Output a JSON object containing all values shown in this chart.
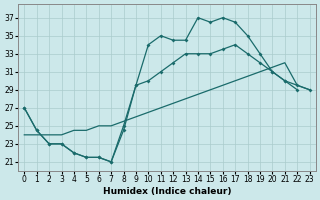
{
  "xlabel": "Humidex (Indice chaleur)",
  "xlim": [
    -0.5,
    23.5
  ],
  "ylim": [
    20.0,
    38.5
  ],
  "yticks": [
    21,
    23,
    25,
    27,
    29,
    31,
    33,
    35,
    37
  ],
  "xticks": [
    0,
    1,
    2,
    3,
    4,
    5,
    6,
    7,
    8,
    9,
    10,
    11,
    12,
    13,
    14,
    15,
    16,
    17,
    18,
    19,
    20,
    21,
    22,
    23
  ],
  "bg_color": "#cce8ea",
  "grid_color": "#aacccc",
  "line_color": "#1a6b6b",
  "line1_x": [
    0,
    1,
    2,
    3,
    4,
    5,
    6,
    7,
    8,
    9,
    10,
    11,
    12,
    13,
    14,
    15,
    16,
    17,
    18,
    19,
    20,
    21,
    22
  ],
  "line1_y": [
    27,
    24.5,
    23,
    23,
    22,
    21.5,
    21.5,
    21,
    24.5,
    29.5,
    34,
    35,
    34.5,
    34.5,
    37,
    36.5,
    37,
    36.5,
    35,
    33,
    31,
    30,
    29
  ],
  "line2_x": [
    0,
    1,
    2,
    3,
    4,
    5,
    6,
    7,
    8,
    9,
    10,
    11,
    12,
    13,
    14,
    15,
    16,
    17,
    18,
    19,
    20,
    21,
    22,
    23
  ],
  "line2_y": [
    24,
    24,
    24,
    24,
    24.5,
    24.5,
    25,
    25,
    25.5,
    26,
    26.5,
    27,
    27.5,
    28,
    28.5,
    29,
    29.5,
    30,
    30.5,
    31,
    31.5,
    32,
    29.5,
    29
  ],
  "line3_x": [
    0,
    1,
    2,
    3,
    4,
    5,
    6,
    7,
    8,
    9,
    10,
    11,
    12,
    13,
    14,
    15,
    16,
    17,
    18,
    19,
    20,
    21,
    22,
    23
  ],
  "line3_y": [
    27,
    24.5,
    23,
    23,
    22,
    21.5,
    21.5,
    21,
    25,
    29.5,
    30,
    31,
    32,
    33,
    33,
    33,
    33.5,
    34,
    33,
    32,
    31,
    30,
    29.5,
    29
  ]
}
